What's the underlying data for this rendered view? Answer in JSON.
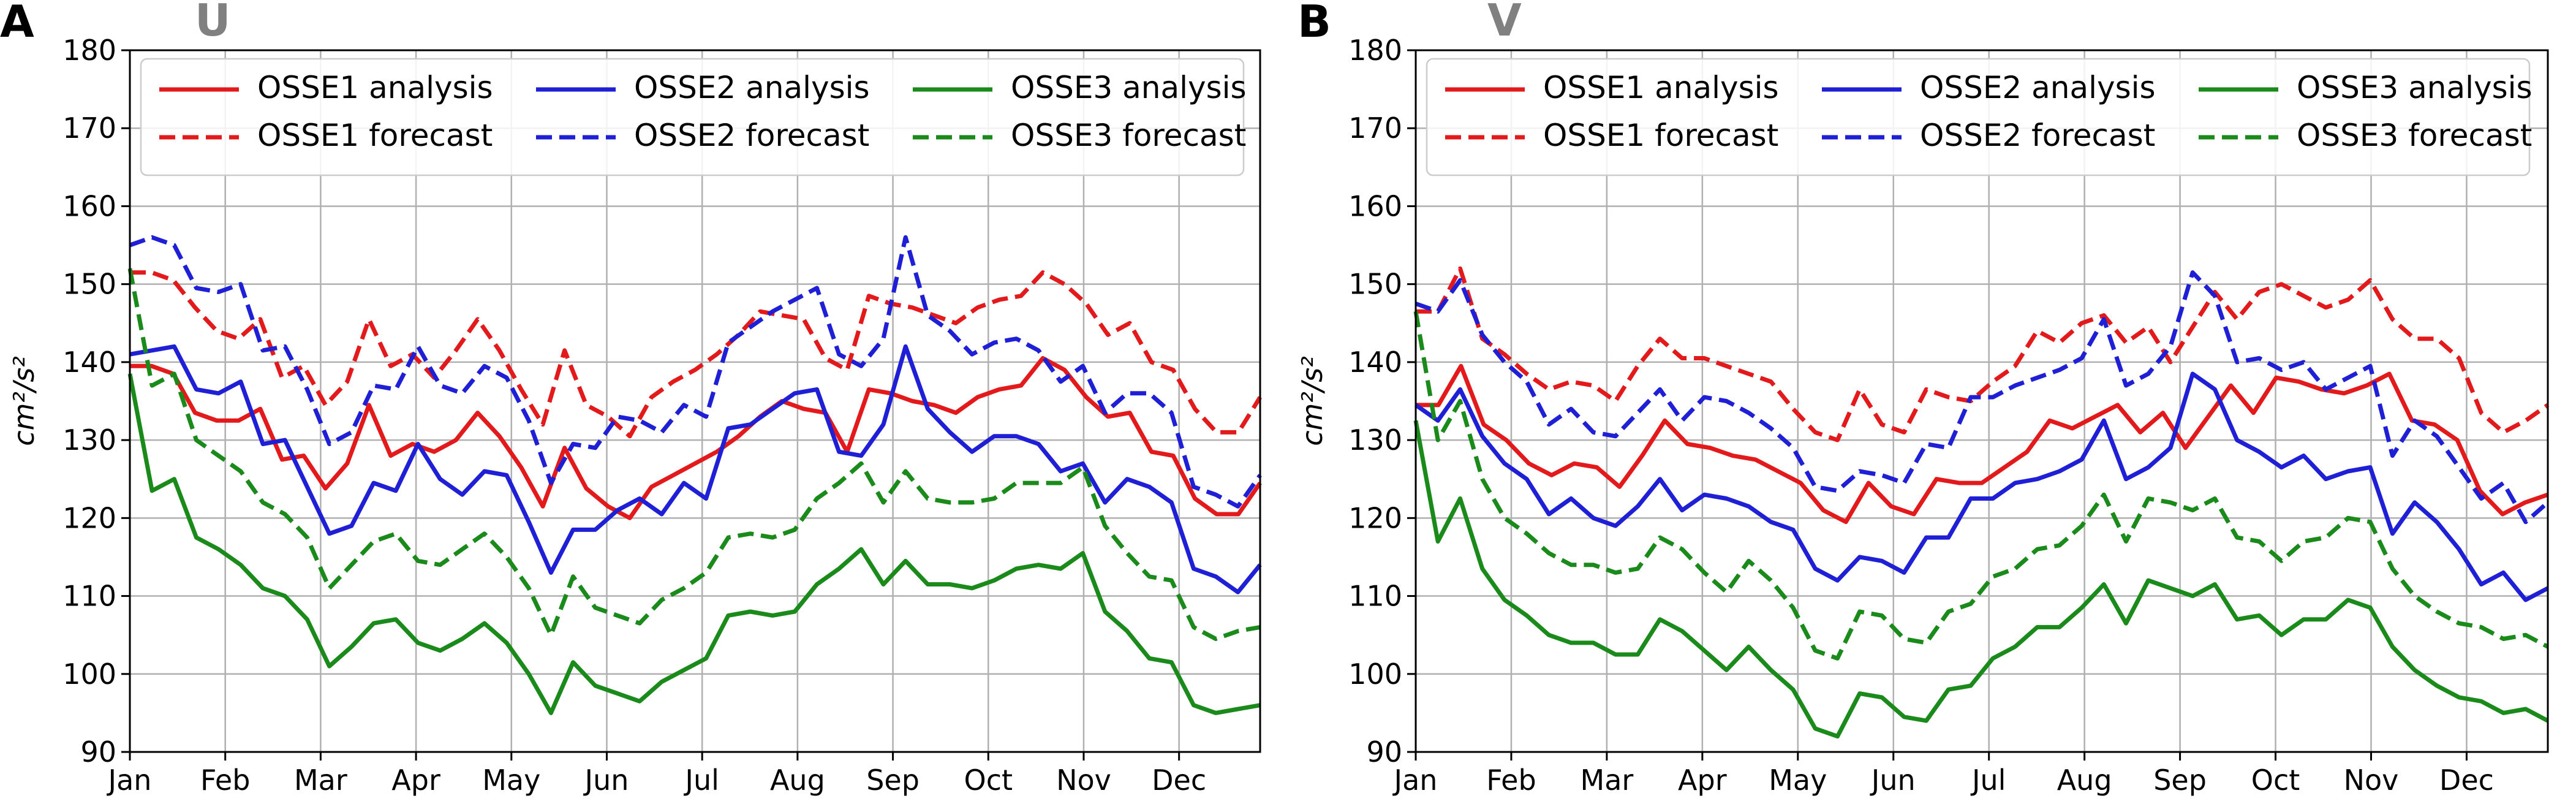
{
  "chart_data": [
    {
      "type": "line",
      "panel_label": "A",
      "title": "U",
      "xlabel": "",
      "ylabel": "cm²/s²",
      "ylim": [
        90,
        180
      ],
      "yticks": [
        90,
        100,
        110,
        120,
        130,
        140,
        150,
        160,
        170,
        180
      ],
      "xlim": [
        0,
        11.85
      ],
      "xticks": [
        0,
        1,
        2,
        3,
        4,
        5,
        6,
        7,
        8,
        9,
        10,
        11
      ],
      "xtick_labels": [
        "Jan",
        "Feb",
        "Mar",
        "Apr",
        "May",
        "Jun",
        "Jul",
        "Aug",
        "Sep",
        "Oct",
        "Nov",
        "Dec"
      ],
      "grid": true,
      "legend_position": "top",
      "series": [
        {
          "name": "OSSE1 analysis",
          "color": "#e31a1c",
          "dashed": false,
          "values": [
            139.5,
            139.5,
            138.5,
            133.5,
            132.5,
            132.5,
            134.0,
            127.5,
            128.0,
            123.8,
            127.0,
            134.5,
            128.0,
            129.5,
            128.5,
            130.0,
            133.5,
            130.5,
            126.5,
            121.5,
            129.0,
            123.8,
            121.5,
            120.0,
            124.0,
            125.5,
            127.0,
            128.5,
            130.5,
            133.0,
            135.0,
            134.0,
            133.5,
            128.5,
            136.5,
            136.0,
            135.0,
            134.5,
            133.5,
            135.5,
            136.5,
            137.0,
            140.5,
            139.0,
            135.5,
            133.0,
            133.5,
            128.5,
            128.0,
            122.5,
            120.5,
            120.5,
            124.5
          ]
        },
        {
          "name": "OSSE1 forecast",
          "color": "#e31a1c",
          "dashed": true,
          "values": [
            151.5,
            151.5,
            150.5,
            147.0,
            144.0,
            143.0,
            145.5,
            138.0,
            139.5,
            134.5,
            137.5,
            145.5,
            139.5,
            141.0,
            138.0,
            141.5,
            145.5,
            141.5,
            136.5,
            132.0,
            141.5,
            134.5,
            133.0,
            130.5,
            135.5,
            137.5,
            139.0,
            141.0,
            143.5,
            146.5,
            146.0,
            145.5,
            140.5,
            139.0,
            148.5,
            147.5,
            147.0,
            146.0,
            145.0,
            147.0,
            148.0,
            148.5,
            151.5,
            150.0,
            147.5,
            143.5,
            145.0,
            140.0,
            139.0,
            134.0,
            131.0,
            131.0,
            135.5
          ]
        },
        {
          "name": "OSSE2 analysis",
          "color": "#1f1fd6",
          "dashed": false,
          "values": [
            141.0,
            141.5,
            142.0,
            136.5,
            136.0,
            137.5,
            129.5,
            130.0,
            124.0,
            118.0,
            119.0,
            124.5,
            123.5,
            129.5,
            125.0,
            123.0,
            126.0,
            125.5,
            119.5,
            113.0,
            118.5,
            118.5,
            121.0,
            122.5,
            120.5,
            124.5,
            122.5,
            131.5,
            132.0,
            134.0,
            136.0,
            136.5,
            128.5,
            128.0,
            132.0,
            142.0,
            134.0,
            131.0,
            128.5,
            130.5,
            130.5,
            129.5,
            126.0,
            127.0,
            122.0,
            125.0,
            124.0,
            122.0,
            113.5,
            112.5,
            110.5,
            114.0
          ]
        },
        {
          "name": "OSSE2 forecast",
          "color": "#1f1fd6",
          "dashed": true,
          "values": [
            155.0,
            156.0,
            155.0,
            149.5,
            149.0,
            150.0,
            141.5,
            142.0,
            136.5,
            129.5,
            131.0,
            137.0,
            136.5,
            142.0,
            137.0,
            136.0,
            139.5,
            138.0,
            132.5,
            124.5,
            129.5,
            129.0,
            133.0,
            132.5,
            131.0,
            134.5,
            133.0,
            142.5,
            144.5,
            146.5,
            148.0,
            149.5,
            141.0,
            139.5,
            143.0,
            156.0,
            146.0,
            144.0,
            141.0,
            142.5,
            143.0,
            141.5,
            137.5,
            139.5,
            133.5,
            136.0,
            136.0,
            133.5,
            124.0,
            123.0,
            121.5,
            125.5
          ]
        },
        {
          "name": "OSSE3 analysis",
          "color": "#1a8a1a",
          "dashed": false,
          "values": [
            138.5,
            123.5,
            125.0,
            117.5,
            116.0,
            114.0,
            111.0,
            110.0,
            107.0,
            101.0,
            103.5,
            106.5,
            107.0,
            104.0,
            103.0,
            104.5,
            106.5,
            104.0,
            100.0,
            95.0,
            101.5,
            98.5,
            97.5,
            96.5,
            99.0,
            100.5,
            102.0,
            107.5,
            108.0,
            107.5,
            108.0,
            111.5,
            113.5,
            116.0,
            111.5,
            114.5,
            111.5,
            111.5,
            111.0,
            112.0,
            113.5,
            114.0,
            113.5,
            115.5,
            108.0,
            105.5,
            102.0,
            101.5,
            96.0,
            95.0,
            95.5,
            96.0
          ]
        },
        {
          "name": "OSSE3 forecast",
          "color": "#1a8a1a",
          "dashed": true,
          "values": [
            152.0,
            137.0,
            138.5,
            130.0,
            128.0,
            126.0,
            122.0,
            120.5,
            117.5,
            111.0,
            114.0,
            117.0,
            118.0,
            114.5,
            114.0,
            116.0,
            118.0,
            115.0,
            111.0,
            105.0,
            112.5,
            108.5,
            107.5,
            106.5,
            109.5,
            111.0,
            113.0,
            117.5,
            118.0,
            117.5,
            118.5,
            122.5,
            124.5,
            127.0,
            122.0,
            126.0,
            122.5,
            122.0,
            122.0,
            122.5,
            124.5,
            124.5,
            124.5,
            126.5,
            119.0,
            115.5,
            112.5,
            112.0,
            106.0,
            104.5,
            105.5,
            106.0
          ]
        }
      ]
    },
    {
      "type": "line",
      "panel_label": "B",
      "title": "V",
      "xlabel": "",
      "ylabel": "cm²/s²",
      "ylim": [
        90,
        180
      ],
      "yticks": [
        90,
        100,
        110,
        120,
        130,
        140,
        150,
        160,
        170,
        180
      ],
      "xlim": [
        0,
        11.85
      ],
      "xticks": [
        0,
        1,
        2,
        3,
        4,
        5,
        6,
        7,
        8,
        9,
        10,
        11
      ],
      "xtick_labels": [
        "Jan",
        "Feb",
        "Mar",
        "Apr",
        "May",
        "Jun",
        "Jul",
        "Aug",
        "Sep",
        "Oct",
        "Nov",
        "Dec"
      ],
      "grid": true,
      "legend_position": "top",
      "series": [
        {
          "name": "OSSE1 analysis",
          "color": "#e31a1c",
          "dashed": false,
          "values": [
            134.5,
            134.5,
            139.5,
            132.0,
            130.0,
            127.0,
            125.5,
            127.0,
            126.5,
            124.0,
            128.0,
            132.5,
            129.5,
            129.0,
            128.0,
            127.5,
            126.0,
            124.5,
            121.0,
            119.5,
            124.5,
            121.5,
            120.5,
            125.0,
            124.5,
            124.5,
            126.5,
            128.5,
            132.5,
            131.5,
            133.0,
            134.5,
            131.0,
            133.5,
            129.0,
            133.0,
            137.0,
            133.5,
            138.0,
            137.5,
            136.5,
            136.0,
            137.0,
            138.5,
            132.5,
            132.0,
            130.0,
            123.5,
            120.5,
            122.0,
            123.0
          ]
        },
        {
          "name": "OSSE1 forecast",
          "color": "#e31a1c",
          "dashed": true,
          "values": [
            146.5,
            146.5,
            152.0,
            143.0,
            141.0,
            138.5,
            136.5,
            137.5,
            137.0,
            135.0,
            139.5,
            143.0,
            140.5,
            140.5,
            139.5,
            138.5,
            137.5,
            134.0,
            131.0,
            130.0,
            136.5,
            132.0,
            131.0,
            136.5,
            135.5,
            135.0,
            137.5,
            139.5,
            144.0,
            142.5,
            145.0,
            146.0,
            142.5,
            144.5,
            140.0,
            144.5,
            149.0,
            145.5,
            149.0,
            150.0,
            148.5,
            147.0,
            148.0,
            150.5,
            145.5,
            143.0,
            143.0,
            140.5,
            133.5,
            131.0,
            132.5,
            134.5
          ]
        },
        {
          "name": "OSSE2 analysis",
          "color": "#1f1fd6",
          "dashed": false,
          "values": [
            134.5,
            132.5,
            136.5,
            130.5,
            127.0,
            125.0,
            120.5,
            122.5,
            120.0,
            119.0,
            121.5,
            125.0,
            121.0,
            123.0,
            122.5,
            121.5,
            119.5,
            118.5,
            113.5,
            112.0,
            115.0,
            114.5,
            113.0,
            117.5,
            117.5,
            122.5,
            122.5,
            124.5,
            125.0,
            126.0,
            127.5,
            132.5,
            125.0,
            126.5,
            129.0,
            138.5,
            136.5,
            130.0,
            128.5,
            126.5,
            128.0,
            125.0,
            126.0,
            126.5,
            118.0,
            122.0,
            119.5,
            116.0,
            111.5,
            113.0,
            109.5,
            111.0
          ]
        },
        {
          "name": "OSSE2 forecast",
          "color": "#1f1fd6",
          "dashed": true,
          "values": [
            147.5,
            146.5,
            150.5,
            143.5,
            140.0,
            137.5,
            132.0,
            134.0,
            131.0,
            130.5,
            133.5,
            136.5,
            132.5,
            135.5,
            135.0,
            133.5,
            131.5,
            129.0,
            124.0,
            123.5,
            126.0,
            125.5,
            124.5,
            129.5,
            129.0,
            135.5,
            135.5,
            137.0,
            138.0,
            139.0,
            140.5,
            145.5,
            137.0,
            138.5,
            142.0,
            151.5,
            148.5,
            140.0,
            140.5,
            139.0,
            140.0,
            136.5,
            138.0,
            139.5,
            128.0,
            132.5,
            130.5,
            126.5,
            122.5,
            124.5,
            119.5,
            122.0
          ]
        },
        {
          "name": "OSSE3 analysis",
          "color": "#1a8a1a",
          "dashed": false,
          "values": [
            132.5,
            117.0,
            122.5,
            113.5,
            109.5,
            107.5,
            105.0,
            104.0,
            104.0,
            102.5,
            102.5,
            107.0,
            105.5,
            103.0,
            100.5,
            103.5,
            100.5,
            98.0,
            93.0,
            92.0,
            97.5,
            97.0,
            94.5,
            94.0,
            98.0,
            98.5,
            102.0,
            103.5,
            106.0,
            106.0,
            108.5,
            111.5,
            106.5,
            112.0,
            111.0,
            110.0,
            111.5,
            107.0,
            107.5,
            105.0,
            107.0,
            107.0,
            109.5,
            108.5,
            103.5,
            100.5,
            98.5,
            97.0,
            96.5,
            95.0,
            95.5,
            94.0
          ]
        },
        {
          "name": "OSSE3 forecast",
          "color": "#1a8a1a",
          "dashed": true,
          "values": [
            146.5,
            130.0,
            135.0,
            125.0,
            120.0,
            118.0,
            115.5,
            114.0,
            114.0,
            113.0,
            113.5,
            117.5,
            116.0,
            113.0,
            110.5,
            114.5,
            112.0,
            108.5,
            103.0,
            102.0,
            108.0,
            107.5,
            104.5,
            104.0,
            108.0,
            109.0,
            112.5,
            113.5,
            116.0,
            116.5,
            119.0,
            123.0,
            117.0,
            122.5,
            122.0,
            121.0,
            122.5,
            117.5,
            117.0,
            114.5,
            117.0,
            117.5,
            120.0,
            119.5,
            113.5,
            110.0,
            108.0,
            106.5,
            106.0,
            104.5,
            105.0,
            103.5
          ]
        }
      ]
    }
  ]
}
